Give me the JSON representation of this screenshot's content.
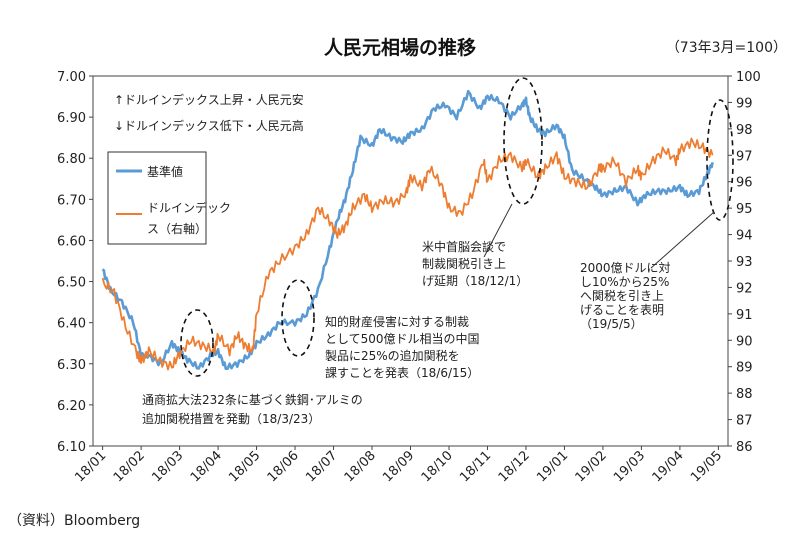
{
  "chart_data": {
    "type": "line",
    "title": "人民元相場の推移",
    "subtitle": "（73年3月=100）",
    "source": "（資料）Bloomberg",
    "legend_position": "upper-left",
    "y_left": {
      "range": [
        6.1,
        7.0
      ],
      "ticks": [
        "6.10",
        "6.20",
        "6.30",
        "6.40",
        "6.50",
        "6.60",
        "6.70",
        "6.80",
        "6.90",
        "7.00"
      ]
    },
    "y_right": {
      "range": [
        86,
        100
      ],
      "ticks": [
        "86",
        "87",
        "88",
        "89",
        "90",
        "91",
        "92",
        "93",
        "94",
        "95",
        "96",
        "97",
        "98",
        "99",
        "100"
      ]
    },
    "x_ticks": [
      "18/01",
      "18/02",
      "18/03",
      "18/04",
      "18/05",
      "18/06",
      "18/07",
      "18/08",
      "18/09",
      "18/10",
      "18/11",
      "18/12",
      "19/01",
      "19/02",
      "19/03",
      "19/04",
      "19/05"
    ],
    "notes": [
      "↑ドルインデックス上昇・人民元安",
      "↓ドルインデックス低下・人民元高"
    ],
    "series": [
      {
        "name": "基準値",
        "axis": "left",
        "color": "#5B9BD5",
        "x": [
          0,
          0.2,
          0.5,
          0.8,
          1.0,
          1.2,
          1.5,
          1.8,
          2.0,
          2.2,
          2.5,
          2.8,
          3.0,
          3.2,
          3.5,
          3.8,
          4.0,
          4.3,
          4.6,
          5.0,
          5.3,
          5.6,
          5.9,
          6.1,
          6.3,
          6.5,
          6.7,
          7.0,
          7.2,
          7.5,
          7.8,
          8.0,
          8.3,
          8.6,
          8.9,
          9.2,
          9.5,
          9.8,
          10.0,
          10.3,
          10.6,
          10.9,
          11.0,
          11.1,
          11.3,
          11.5,
          11.8,
          12.0,
          12.2,
          12.5,
          12.8,
          13.0,
          13.3,
          13.6,
          13.9,
          14.1,
          14.4,
          14.7,
          15.0,
          15.2,
          15.5,
          15.7,
          15.85
        ],
        "values": [
          6.53,
          6.48,
          6.45,
          6.4,
          6.32,
          6.32,
          6.3,
          6.35,
          6.33,
          6.31,
          6.29,
          6.32,
          6.33,
          6.29,
          6.3,
          6.32,
          6.35,
          6.37,
          6.4,
          6.4,
          6.42,
          6.48,
          6.58,
          6.65,
          6.7,
          6.77,
          6.85,
          6.83,
          6.87,
          6.85,
          6.84,
          6.86,
          6.87,
          6.92,
          6.93,
          6.9,
          6.96,
          6.92,
          6.95,
          6.94,
          6.9,
          6.93,
          6.94,
          6.9,
          6.87,
          6.86,
          6.88,
          6.85,
          6.77,
          6.75,
          6.73,
          6.71,
          6.72,
          6.73,
          6.69,
          6.71,
          6.72,
          6.72,
          6.73,
          6.71,
          6.72,
          6.76,
          6.79
        ]
      },
      {
        "name": "ドルインデックス（右軸）",
        "axis": "right",
        "color": "#ED7D31",
        "x": [
          0,
          0.3,
          0.6,
          0.9,
          1.0,
          1.2,
          1.5,
          1.8,
          2.0,
          2.3,
          2.6,
          2.9,
          3.0,
          3.3,
          3.5,
          3.7,
          3.9,
          4.0,
          4.3,
          4.6,
          5.0,
          5.3,
          5.6,
          5.9,
          6.1,
          6.3,
          6.5,
          6.8,
          7.0,
          7.3,
          7.6,
          7.9,
          8.0,
          8.3,
          8.5,
          8.8,
          9.0,
          9.3,
          9.6,
          9.9,
          10.0,
          10.3,
          10.6,
          10.9,
          11.0,
          11.3,
          11.5,
          11.8,
          12.0,
          12.3,
          12.6,
          12.9,
          13.0,
          13.3,
          13.6,
          13.9,
          14.0,
          14.3,
          14.6,
          14.9,
          15.0,
          15.3,
          15.6,
          15.85
        ],
        "values": [
          92.2,
          91.8,
          90.5,
          89.5,
          89.2,
          89.6,
          89.2,
          89.0,
          89.5,
          90.0,
          89.8,
          89.6,
          90.2,
          89.6,
          90.2,
          89.8,
          89.6,
          91.0,
          92.5,
          93.0,
          93.5,
          94.0,
          95.0,
          94.5,
          94.0,
          94.3,
          95.0,
          95.5,
          95.0,
          95.3,
          95.2,
          95.6,
          96.2,
          95.8,
          96.5,
          95.9,
          95.0,
          94.8,
          95.5,
          96.8,
          96.0,
          96.8,
          97.0,
          96.5,
          96.8,
          96.2,
          96.5,
          97.0,
          96.2,
          96.0,
          95.8,
          96.5,
          96.5,
          96.8,
          96.0,
          96.5,
          96.2,
          96.8,
          97.2,
          96.8,
          97.2,
          97.5,
          97.3,
          97.0
        ]
      }
    ],
    "annotations": [
      {
        "lines": [
          "通商拡大法232条に基づく鉄鋼･アルミの",
          "追加関税措置を発動（18/3/23）"
        ]
      },
      {
        "lines": [
          "知的財産侵害に対する制裁",
          "として500億ドル相当の中国",
          "製品に25%の追加関税を",
          "課すことを発表（18/6/15）"
        ]
      },
      {
        "lines": [
          "米中首脳会談で",
          "制裁関税引き上",
          "げ延期（18/12/1）"
        ]
      },
      {
        "lines": [
          "2000億ドルに対",
          "し10%から25%",
          "へ関税を引き上",
          "げることを表明",
          "（19/5/5）"
        ]
      }
    ]
  }
}
